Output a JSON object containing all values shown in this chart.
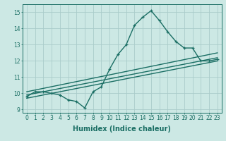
{
  "xlabel": "Humidex (Indice chaleur)",
  "ylabel": "",
  "bg_color": "#cce8e4",
  "grid_color": "#aaccca",
  "line_color": "#1a6e64",
  "xlim": [
    -0.5,
    23.5
  ],
  "ylim": [
    8.8,
    15.5
  ],
  "yticks": [
    9,
    10,
    11,
    12,
    13,
    14,
    15
  ],
  "xticks": [
    0,
    1,
    2,
    3,
    4,
    5,
    6,
    7,
    8,
    9,
    10,
    11,
    12,
    13,
    14,
    15,
    16,
    17,
    18,
    19,
    20,
    21,
    22,
    23
  ],
  "main_x": [
    0,
    1,
    2,
    3,
    4,
    5,
    6,
    7,
    8,
    9,
    10,
    11,
    12,
    13,
    14,
    15,
    16,
    17,
    18,
    19,
    20,
    21,
    22,
    23
  ],
  "main_y": [
    9.8,
    10.1,
    10.1,
    10.0,
    9.9,
    9.6,
    9.5,
    9.1,
    10.1,
    10.4,
    11.5,
    12.4,
    13.0,
    14.2,
    14.7,
    15.1,
    14.5,
    13.8,
    13.2,
    12.8,
    12.8,
    12.0,
    12.0,
    12.1
  ],
  "trend1_x": [
    0,
    23
  ],
  "trend1_y": [
    9.9,
    12.2
  ],
  "trend2_x": [
    0,
    23
  ],
  "trend2_y": [
    10.1,
    12.5
  ],
  "trend3_x": [
    0,
    23
  ],
  "trend3_y": [
    9.7,
    12.0
  ],
  "marker_size": 3.0,
  "line_width": 1.0,
  "tick_fontsize": 5.5,
  "xlabel_fontsize": 7.0
}
